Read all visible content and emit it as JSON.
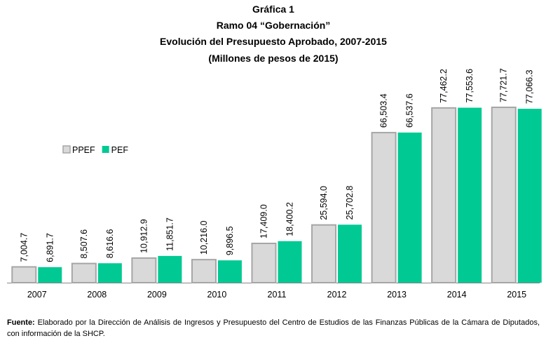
{
  "chart_data": {
    "type": "bar",
    "title": "Gráfica 1",
    "subtitle": [
      "Ramo 04 “Gobernación”",
      "Evolución del Presupuesto Aprobado, 2007-2015",
      "(Millones de pesos de 2015)"
    ],
    "categories": [
      "2007",
      "2008",
      "2009",
      "2010",
      "2011",
      "2012",
      "2013",
      "2014",
      "2015"
    ],
    "series": [
      {
        "name": "PPEF",
        "color": "#d9d9d9",
        "values": [
          7004.7,
          8507.6,
          10912.9,
          10216.0,
          17409.0,
          25594.0,
          66503.4,
          77462.2,
          77721.7
        ],
        "value_labels": [
          "7,004.7",
          "8,507.6",
          "10,912.9",
          "10,216.0",
          "17,409.0",
          "25,594.0",
          "66,503.4",
          "77,462.2",
          "77,721.7"
        ]
      },
      {
        "name": "PEF",
        "color": "#00c993",
        "values": [
          6891.7,
          8616.6,
          11851.7,
          9896.5,
          18400.2,
          25702.8,
          66537.6,
          77553.6,
          77066.3
        ],
        "value_labels": [
          "6,891.7",
          "8,616.6",
          "11,851.7",
          "9,896.5",
          "18,400.2",
          "25,702.8",
          "66,537.6",
          "77,553.6",
          "77,066.3"
        ]
      }
    ],
    "legend": "left",
    "source_label": "Fuente:",
    "source": "Elaborado por la Dirección de Análisis de Ingresos y Presupuesto del Centro de Estudios de las Finanzas Públicas de la Cámara de Diputados, con información de la SHCP."
  }
}
